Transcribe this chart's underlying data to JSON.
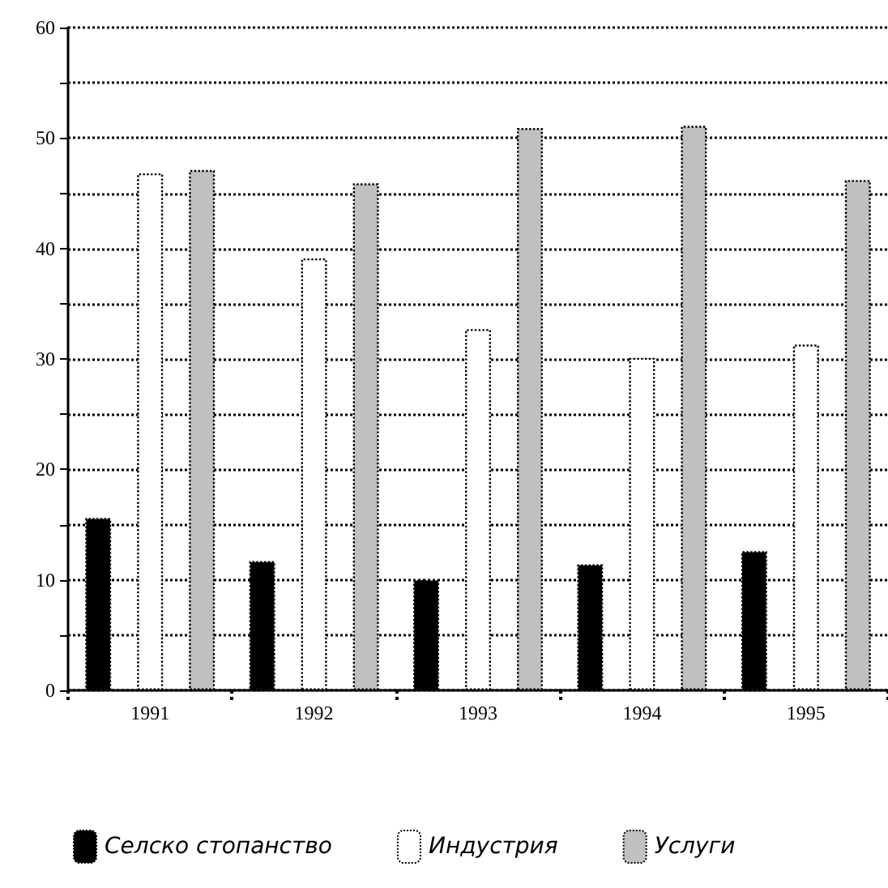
{
  "chart_data": {
    "type": "bar",
    "categories": [
      "1991",
      "1992",
      "1993",
      "1994",
      "1995"
    ],
    "series": [
      {
        "name": "Селско стопанство",
        "color": "#000000",
        "values": [
          15.6,
          11.7,
          10.0,
          11.4,
          12.6
        ]
      },
      {
        "name": "Индустрия",
        "color": "#ffffff",
        "values": [
          46.8,
          39.1,
          32.7,
          30.1,
          31.3
        ]
      },
      {
        "name": "Услуги",
        "color": "#c0c0c0",
        "values": [
          47.1,
          45.9,
          50.9,
          51.1,
          46.2
        ]
      }
    ],
    "ylim": [
      0,
      60
    ],
    "yticks": [
      0,
      {
        "value": 5,
        "label": null
      },
      10,
      {
        "value": 15,
        "label": null
      },
      20,
      {
        "value": 25,
        "label": null
      },
      30,
      {
        "value": 35,
        "label": null
      },
      40,
      {
        "value": 45,
        "label": null
      },
      50,
      {
        "value": 55,
        "label": null
      },
      60
    ],
    "grid": "y",
    "legend": "bottom"
  }
}
